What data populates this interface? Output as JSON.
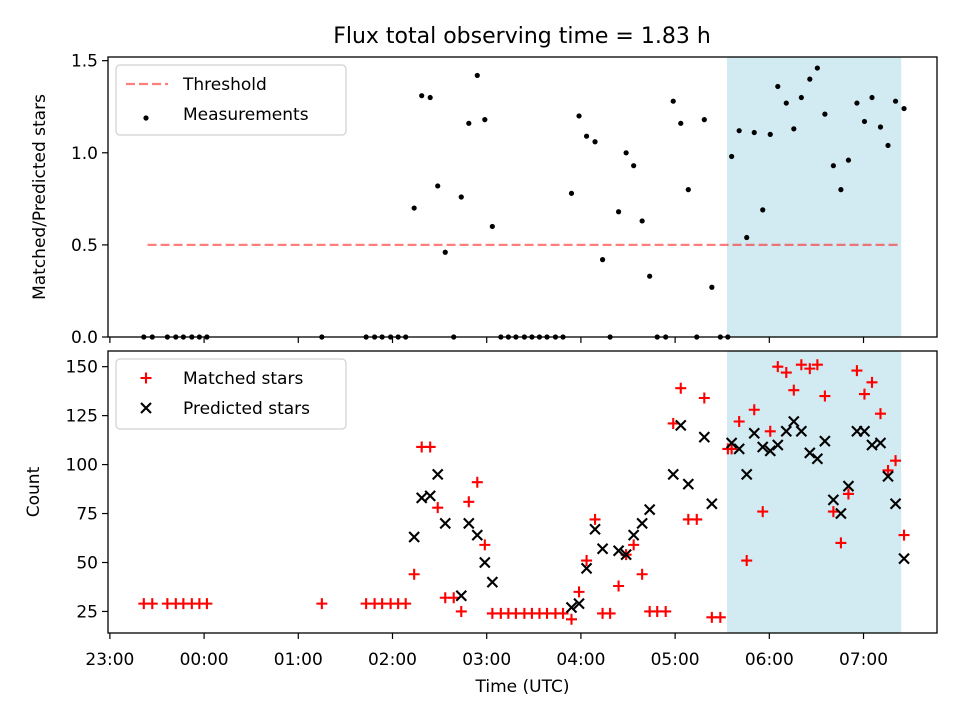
{
  "title": "Flux total observing time = 1.83 h",
  "chart_data": [
    {
      "type": "scatter",
      "panel": "top",
      "title": "Flux total observing time = 1.83 h",
      "xlabel": "",
      "ylabel": "Matched/Predicted stars",
      "x_unit": "hours from 23:00 UTC",
      "xlim": [
        -0.02,
        8.78
      ],
      "ylim": [
        0,
        1.52
      ],
      "yticks": [
        0.0,
        0.5,
        1.0,
        1.5
      ],
      "ytick_labels": [
        "0.0",
        "0.5",
        "1.0",
        "1.5"
      ],
      "legend_position": "top-left",
      "highlight_band": {
        "x_start": 6.55,
        "x_end": 8.4,
        "color": "#add8e6"
      },
      "threshold": {
        "name": "Threshold",
        "value": 0.5,
        "x_start": 0.4,
        "x_end": 8.4,
        "color": "#ff0000"
      },
      "series": [
        {
          "name": "Measurements",
          "color": "#000000",
          "marker": "dot",
          "points": [
            [
              0.36,
              0.0
            ],
            [
              0.45,
              0.0
            ],
            [
              0.61,
              0.0
            ],
            [
              0.7,
              0.0
            ],
            [
              0.78,
              0.0
            ],
            [
              0.87,
              0.0
            ],
            [
              0.95,
              0.0
            ],
            [
              1.03,
              0.0
            ],
            [
              2.25,
              0.0
            ],
            [
              2.72,
              0.0
            ],
            [
              2.81,
              0.0
            ],
            [
              2.89,
              0.0
            ],
            [
              2.98,
              0.0
            ],
            [
              3.06,
              0.0
            ],
            [
              3.14,
              0.0
            ],
            [
              3.23,
              0.7
            ],
            [
              3.31,
              1.31
            ],
            [
              3.4,
              1.3
            ],
            [
              3.48,
              0.82
            ],
            [
              3.56,
              0.46
            ],
            [
              3.65,
              0.0
            ],
            [
              3.73,
              0.76
            ],
            [
              3.81,
              1.16
            ],
            [
              3.9,
              1.42
            ],
            [
              3.98,
              1.18
            ],
            [
              4.06,
              0.6
            ],
            [
              4.15,
              0.0
            ],
            [
              4.23,
              0.0
            ],
            [
              4.31,
              0.0
            ],
            [
              4.4,
              0.0
            ],
            [
              4.48,
              0.0
            ],
            [
              4.56,
              0.0
            ],
            [
              4.64,
              0.0
            ],
            [
              4.73,
              0.0
            ],
            [
              4.81,
              0.0
            ],
            [
              4.9,
              0.78
            ],
            [
              4.98,
              1.2
            ],
            [
              5.06,
              1.09
            ],
            [
              5.15,
              1.06
            ],
            [
              5.23,
              0.42
            ],
            [
              5.31,
              0.0
            ],
            [
              5.4,
              0.68
            ],
            [
              5.48,
              1.0
            ],
            [
              5.56,
              0.93
            ],
            [
              5.65,
              0.63
            ],
            [
              5.73,
              0.33
            ],
            [
              5.81,
              0.0
            ],
            [
              5.9,
              0.0
            ],
            [
              5.98,
              1.28
            ],
            [
              6.06,
              1.16
            ],
            [
              6.14,
              0.8
            ],
            [
              6.23,
              0.0
            ],
            [
              6.31,
              1.18
            ],
            [
              6.39,
              0.27
            ],
            [
              6.48,
              0.0
            ],
            [
              6.56,
              0.0
            ],
            [
              6.6,
              0.98
            ],
            [
              6.68,
              1.12
            ],
            [
              6.76,
              0.54
            ],
            [
              6.84,
              1.11
            ],
            [
              6.93,
              0.69
            ],
            [
              7.01,
              1.1
            ],
            [
              7.09,
              1.36
            ],
            [
              7.18,
              1.27
            ],
            [
              7.26,
              1.13
            ],
            [
              7.34,
              1.3
            ],
            [
              7.43,
              1.4
            ],
            [
              7.51,
              1.46
            ],
            [
              7.59,
              1.21
            ],
            [
              7.68,
              0.93
            ],
            [
              7.76,
              0.8
            ],
            [
              7.84,
              0.96
            ],
            [
              7.93,
              1.27
            ],
            [
              8.01,
              1.17
            ],
            [
              8.09,
              1.3
            ],
            [
              8.18,
              1.14
            ],
            [
              8.26,
              1.04
            ],
            [
              8.34,
              1.28
            ],
            [
              8.43,
              1.24
            ]
          ]
        }
      ]
    },
    {
      "type": "scatter",
      "panel": "bottom",
      "title": "",
      "xlabel": "Time (UTC)",
      "ylabel": "Count",
      "x_unit": "hours from 23:00 UTC",
      "xlim": [
        -0.02,
        8.78
      ],
      "ylim": [
        14,
        158
      ],
      "xticks": [
        0,
        1,
        2,
        3,
        4,
        5,
        6,
        7,
        8
      ],
      "xtick_labels": [
        "23:00",
        "00:00",
        "01:00",
        "02:00",
        "03:00",
        "04:00",
        "05:00",
        "06:00",
        "07:00"
      ],
      "yticks": [
        25,
        50,
        75,
        100,
        125,
        150
      ],
      "ytick_labels": [
        "25",
        "50",
        "75",
        "100",
        "125",
        "150"
      ],
      "legend_position": "top-left",
      "highlight_band": {
        "x_start": 6.55,
        "x_end": 8.4,
        "color": "#add8e6"
      },
      "series": [
        {
          "name": "Matched stars",
          "color": "#ff0000",
          "marker": "plus",
          "points": [
            [
              0.36,
              29
            ],
            [
              0.45,
              29
            ],
            [
              0.61,
              29
            ],
            [
              0.7,
              29
            ],
            [
              0.78,
              29
            ],
            [
              0.87,
              29
            ],
            [
              0.95,
              29
            ],
            [
              1.03,
              29
            ],
            [
              2.25,
              29
            ],
            [
              2.72,
              29
            ],
            [
              2.81,
              29
            ],
            [
              2.89,
              29
            ],
            [
              2.98,
              29
            ],
            [
              3.06,
              29
            ],
            [
              3.14,
              29
            ],
            [
              3.23,
              44
            ],
            [
              3.31,
              109
            ],
            [
              3.4,
              109
            ],
            [
              3.48,
              78
            ],
            [
              3.56,
              32
            ],
            [
              3.65,
              32
            ],
            [
              3.73,
              25
            ],
            [
              3.81,
              81
            ],
            [
              3.9,
              91
            ],
            [
              3.98,
              59
            ],
            [
              4.06,
              24
            ],
            [
              4.15,
              24
            ],
            [
              4.23,
              24
            ],
            [
              4.31,
              24
            ],
            [
              4.4,
              24
            ],
            [
              4.48,
              24
            ],
            [
              4.56,
              24
            ],
            [
              4.64,
              24
            ],
            [
              4.73,
              24
            ],
            [
              4.81,
              24
            ],
            [
              4.9,
              21
            ],
            [
              4.98,
              35
            ],
            [
              5.06,
              51
            ],
            [
              5.15,
              72
            ],
            [
              5.23,
              24
            ],
            [
              5.31,
              24
            ],
            [
              5.4,
              38
            ],
            [
              5.48,
              54
            ],
            [
              5.56,
              59
            ],
            [
              5.65,
              44
            ],
            [
              5.73,
              25
            ],
            [
              5.81,
              25
            ],
            [
              5.9,
              25
            ],
            [
              5.98,
              121
            ],
            [
              6.06,
              139
            ],
            [
              6.14,
              72
            ],
            [
              6.23,
              72
            ],
            [
              6.31,
              134
            ],
            [
              6.39,
              22
            ],
            [
              6.48,
              22
            ],
            [
              6.56,
              108
            ],
            [
              6.6,
              108
            ],
            [
              6.68,
              122
            ],
            [
              6.76,
              51
            ],
            [
              6.84,
              128
            ],
            [
              6.93,
              76
            ],
            [
              7.01,
              117
            ],
            [
              7.09,
              150
            ],
            [
              7.18,
              147
            ],
            [
              7.26,
              138
            ],
            [
              7.34,
              151
            ],
            [
              7.43,
              149
            ],
            [
              7.51,
              151
            ],
            [
              7.59,
              135
            ],
            [
              7.68,
              76
            ],
            [
              7.76,
              60
            ],
            [
              7.84,
              85
            ],
            [
              7.93,
              148
            ],
            [
              8.01,
              136
            ],
            [
              8.09,
              142
            ],
            [
              8.18,
              126
            ],
            [
              8.26,
              97
            ],
            [
              8.34,
              102
            ],
            [
              8.43,
              64
            ]
          ]
        },
        {
          "name": "Predicted stars",
          "color": "#000000",
          "marker": "x",
          "points": [
            [
              3.23,
              63
            ],
            [
              3.31,
              83
            ],
            [
              3.4,
              84
            ],
            [
              3.48,
              95
            ],
            [
              3.56,
              70
            ],
            [
              3.73,
              33
            ],
            [
              3.81,
              70
            ],
            [
              3.9,
              64
            ],
            [
              3.98,
              50
            ],
            [
              4.06,
              40
            ],
            [
              4.9,
              27
            ],
            [
              4.98,
              29
            ],
            [
              5.06,
              47
            ],
            [
              5.15,
              67
            ],
            [
              5.23,
              57
            ],
            [
              5.4,
              56
            ],
            [
              5.48,
              54
            ],
            [
              5.56,
              64
            ],
            [
              5.65,
              70
            ],
            [
              5.73,
              77
            ],
            [
              5.98,
              95
            ],
            [
              6.06,
              120
            ],
            [
              6.14,
              90
            ],
            [
              6.31,
              114
            ],
            [
              6.39,
              80
            ],
            [
              6.6,
              111
            ],
            [
              6.68,
              108
            ],
            [
              6.76,
              95
            ],
            [
              6.84,
              116
            ],
            [
              6.93,
              109
            ],
            [
              7.01,
              107
            ],
            [
              7.09,
              110
            ],
            [
              7.18,
              117
            ],
            [
              7.26,
              122
            ],
            [
              7.34,
              117
            ],
            [
              7.43,
              106
            ],
            [
              7.51,
              103
            ],
            [
              7.59,
              112
            ],
            [
              7.68,
              82
            ],
            [
              7.76,
              75
            ],
            [
              7.84,
              89
            ],
            [
              7.93,
              117
            ],
            [
              8.01,
              117
            ],
            [
              8.09,
              110
            ],
            [
              8.18,
              111
            ],
            [
              8.26,
              94
            ],
            [
              8.34,
              80
            ],
            [
              8.43,
              52
            ]
          ]
        }
      ]
    }
  ]
}
